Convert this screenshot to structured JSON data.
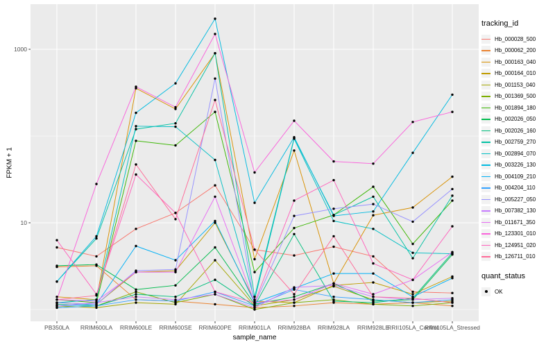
{
  "figure": {
    "background": "#FFFFFF",
    "panel_background": "#EBEBEB",
    "grid_color": "#FFFFFF",
    "tick_label_color": "#4D4D4D",
    "axis_title_color": "#000000",
    "point_color": "#000000",
    "legend_key_background": "#F2F2F2"
  },
  "chart_data": {
    "type": "line",
    "title": "",
    "xlabel": "sample_name",
    "ylabel": "FPKM + 1",
    "y_scale": "log10",
    "grid": true,
    "legend_position": "right",
    "y_major_ticks": [
      10,
      1000
    ],
    "y_major_tick_labels": [
      "10",
      "1000"
    ],
    "y_minor_grid_values": [
      1,
      100
    ],
    "ylim": [
      0.74,
      3000
    ],
    "categories": [
      "PB350LA",
      "RRIM600LA",
      "RRIM600LE",
      "RRIM600SE",
      "RRIM600PE",
      "RRIM901LA",
      "RRIM928BA",
      "RRIM928LA",
      "RRIM928LE",
      "RRII105LA_Control",
      "RRII105LA_Stressed"
    ],
    "series": [
      {
        "name": "Hb_000028_500",
        "color": "#F8766D",
        "values": [
          5.2,
          4.1,
          8.5,
          13,
          27,
          4.9,
          4.2,
          5.3,
          4.1,
          1.6,
          1.55
        ]
      },
      {
        "name": "Hb_000062_200",
        "color": "#EA8331",
        "values": [
          3.1,
          3.2,
          1.3,
          1.25,
          1.15,
          1.05,
          1.1,
          1.2,
          1.15,
          1.2,
          1.1
        ]
      },
      {
        "name": "Hb_000163_040",
        "color": "#D89000",
        "values": [
          1.4,
          1.3,
          355,
          205,
          900,
          3.8,
          68,
          2.0,
          12.2,
          15,
          34
        ]
      },
      {
        "name": "Hb_000164_010",
        "color": "#C09B00",
        "values": [
          1.2,
          1.15,
          2.7,
          2.8,
          10,
          1.25,
          1.2,
          1.9,
          2.05,
          1.5,
          2.4
        ]
      },
      {
        "name": "Hb_001153_040",
        "color": "#A3A500",
        "values": [
          1.1,
          1.05,
          1.2,
          1.15,
          3.7,
          1.1,
          1.3,
          1.85,
          1.3,
          1.2,
          1.25
        ]
      },
      {
        "name": "Hb_001369_500",
        "color": "#7CAE00",
        "values": [
          1.05,
          1.1,
          1.6,
          1.2,
          1.5,
          1.0,
          1.2,
          1.3,
          1.15,
          1.1,
          1.2
        ]
      },
      {
        "name": "Hb_001894_180",
        "color": "#39B600",
        "values": [
          1.3,
          1.2,
          88,
          78,
          190,
          2.7,
          8.7,
          12.3,
          26,
          5.7,
          18
        ]
      },
      {
        "name": "Hb_002026_050",
        "color": "#00BB4E",
        "values": [
          3.2,
          3.3,
          1.7,
          1.9,
          5.2,
          1.15,
          1.4,
          2.0,
          1.25,
          1.3,
          4.3
        ]
      },
      {
        "name": "Hb_002026_160",
        "color": "#00BF7D",
        "values": [
          1.15,
          1.1,
          1.5,
          1.4,
          2.2,
          1.1,
          7.4,
          1.25,
          1.2,
          1.35,
          4.5
        ]
      },
      {
        "name": "Hb_002759_270",
        "color": "#00C1A3",
        "values": [
          2.1,
          6.6,
          120,
          140,
          900,
          1.4,
          95,
          12.3,
          20,
          3.9,
          20.5
        ]
      },
      {
        "name": "Hb_002894_070",
        "color": "#00BFC4",
        "values": [
          1.2,
          1.3,
          130,
          128,
          53,
          1.3,
          93,
          10.5,
          8.5,
          4.5,
          4.4
        ]
      },
      {
        "name": "Hb_003226_130",
        "color": "#00BAE0",
        "values": [
          2.1,
          7.0,
          185,
          405,
          2250,
          17,
          97,
          12,
          13.5,
          64,
          300
        ]
      },
      {
        "name": "Hb_004109_210",
        "color": "#00B0F6",
        "values": [
          1.1,
          1.15,
          5.4,
          3.7,
          10.5,
          1.2,
          1.75,
          2.6,
          2.6,
          1.4,
          2.3
        ]
      },
      {
        "name": "Hb_004204_110",
        "color": "#35A2FF",
        "values": [
          1.05,
          1.1,
          1.3,
          1.25,
          1.6,
          1.1,
          1.7,
          1.4,
          1.3,
          1.2,
          1.3
        ]
      },
      {
        "name": "Hb_005227_050",
        "color": "#9590FF",
        "values": [
          1.2,
          1.15,
          2.8,
          2.9,
          460,
          1.15,
          12,
          14.5,
          16.4,
          10.3,
          24.5
        ]
      },
      {
        "name": "Hb_007382_130",
        "color": "#C77CFF",
        "values": [
          1.1,
          1.2,
          1.4,
          1.3,
          1.5,
          1.05,
          1.8,
          1.9,
          1.4,
          1.3,
          1.35
        ]
      },
      {
        "name": "Hb_011671_350",
        "color": "#E76BF3",
        "values": [
          1.3,
          1.25,
          2.7,
          2.7,
          20,
          1.2,
          1.3,
          2.0,
          1.5,
          2.2,
          4.6
        ]
      },
      {
        "name": "Hb_123301_010",
        "color": "#FA62DB",
        "values": [
          1.3,
          28,
          370,
          215,
          1500,
          38,
          150,
          51,
          48,
          145,
          190
        ]
      },
      {
        "name": "Hb_124951_020",
        "color": "#FF62BC",
        "values": [
          6.3,
          1.5,
          36,
          13,
          1.6,
          1.2,
          18,
          31,
          3.4,
          2.2,
          9.1
        ]
      },
      {
        "name": "Hb_126711_010",
        "color": "#FF6A98",
        "values": [
          1.3,
          1.45,
          47,
          11,
          260,
          4.9,
          1.5,
          7.0,
          1.4,
          1.35,
          1.2
        ]
      }
    ]
  },
  "legend": {
    "tracking_title": "tracking_id",
    "quant_title": "quant_status",
    "quant_items": [
      {
        "label": "OK"
      }
    ]
  }
}
